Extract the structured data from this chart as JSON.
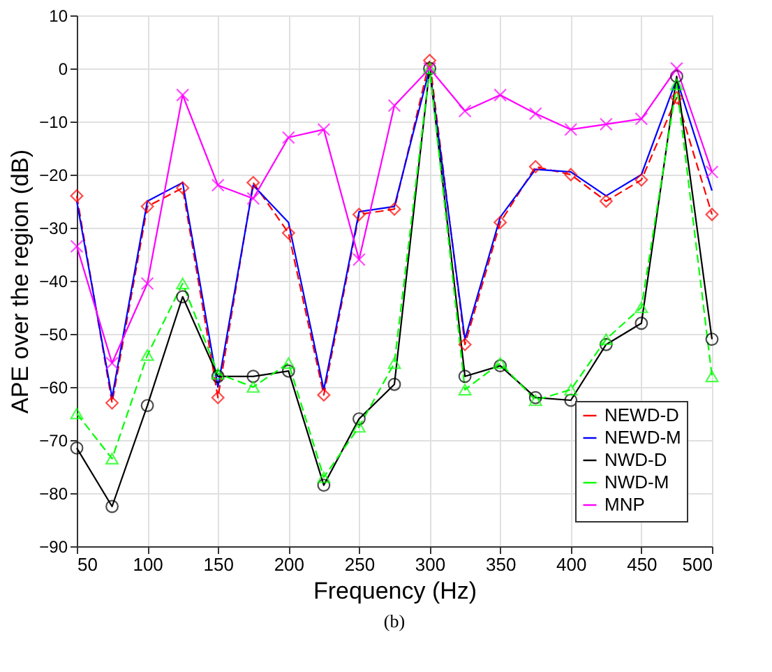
{
  "chart_data": {
    "type": "line",
    "xlabel": "Frequency (Hz)",
    "ylabel": "APE over the region (dB)",
    "x": [
      50,
      75,
      100,
      125,
      150,
      175,
      200,
      225,
      250,
      275,
      300,
      325,
      350,
      375,
      400,
      425,
      450,
      475,
      500
    ],
    "series": [
      {
        "name": "NEWD-D",
        "color": "#ff0000",
        "marker": "diamond",
        "line_style": "dashed",
        "values": [
          -24,
          -63,
          -26,
          -22.5,
          -62,
          -21.5,
          -31,
          -61.5,
          -27.5,
          -26.5,
          1.5,
          -52,
          -29,
          -18.5,
          -20,
          -25,
          -21,
          -5.5,
          -27.5
        ]
      },
      {
        "name": "NEWD-M",
        "color": "#0000ff",
        "marker": "none",
        "line_style": "solid",
        "values": [
          -25,
          -62,
          -25,
          -21.5,
          -60,
          -22,
          -29,
          -60.5,
          -27,
          -26,
          0,
          -51,
          -28,
          -19,
          -19.5,
          -24,
          -20,
          -2,
          -23
        ]
      },
      {
        "name": "NWD-D",
        "color": "#000000",
        "marker": "circle",
        "line_style": "solid",
        "values": [
          -71.5,
          -82.5,
          -63.5,
          -43,
          -58,
          -58,
          -57,
          -78.5,
          -66,
          -59.5,
          0,
          -58,
          -56,
          -62,
          -62.5,
          -52,
          -48,
          -1.5,
          -51
        ]
      },
      {
        "name": "NWD-M",
        "color": "#00ff00",
        "marker": "triangle",
        "line_style": "dashed",
        "values": [
          -65,
          -73.5,
          -54,
          -40.5,
          -57.5,
          -60,
          -55.5,
          -77,
          -67.5,
          -55.5,
          0,
          -60.5,
          -55.5,
          -62.5,
          -60.5,
          -51,
          -45,
          -3,
          -58
        ]
      },
      {
        "name": "MNP",
        "color": "#ff00ff",
        "marker": "cross",
        "line_style": "solid",
        "values": [
          -33.5,
          -55.5,
          -40.5,
          -5,
          -22,
          -24.5,
          -13,
          -11.5,
          -36,
          -7,
          0,
          -8,
          -5,
          -8.5,
          -11.5,
          -10.5,
          -9.5,
          0,
          -19.5
        ]
      }
    ],
    "xlim": [
      50,
      500
    ],
    "xticks": [
      50,
      100,
      150,
      200,
      250,
      300,
      350,
      400,
      450,
      500
    ],
    "ylim": [
      -90,
      10
    ],
    "yticks": [
      -90,
      -80,
      -70,
      -60,
      -50,
      -40,
      -30,
      -20,
      -10,
      0,
      10
    ],
    "grid": true,
    "legend": "bottom right",
    "annotations": [
      "(b)"
    ]
  }
}
